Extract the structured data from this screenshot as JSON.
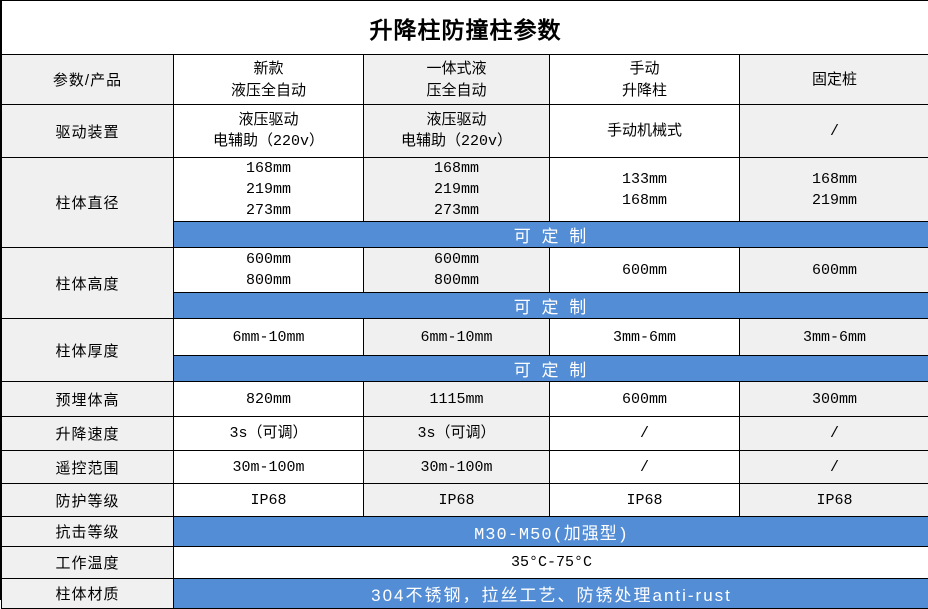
{
  "title": "升降柱防撞柱参数",
  "header": {
    "corner": "参数/产品",
    "products": [
      "新款\n液压全自动",
      "一体式液\n压全自动",
      "手动\n升降柱",
      "固定桩"
    ]
  },
  "rows": {
    "drive": {
      "label": "驱动装置",
      "values": [
        "液压驱动\n电辅助（220v）",
        "液压驱动\n电辅助（220v）",
        "手动机械式",
        "/"
      ]
    },
    "diameter": {
      "label": "柱体直径",
      "values": [
        "168mm\n219mm\n273mm",
        "168mm\n219mm\n273mm",
        "133mm\n168mm",
        "168mm\n219mm"
      ],
      "custom": "可 定 制"
    },
    "height": {
      "label": "柱体高度",
      "values": [
        "600mm\n800mm",
        "600mm\n800mm",
        "600mm",
        "600mm"
      ],
      "custom": "可 定 制"
    },
    "thickness": {
      "label": "柱体厚度",
      "values": [
        "6mm-10mm",
        "6mm-10mm",
        "3mm-6mm",
        "3mm-6mm"
      ],
      "custom": "可 定 制"
    },
    "buried": {
      "label": "预埋体高",
      "values": [
        "820mm",
        "1115mm",
        "600mm",
        "300mm"
      ]
    },
    "speed": {
      "label": "升降速度",
      "values": [
        "3s（可调）",
        "3s（可调）",
        "/",
        "/"
      ]
    },
    "remote": {
      "label": "遥控范围",
      "values": [
        "30m-100m",
        "30m-100m",
        "/",
        "/"
      ]
    },
    "protection": {
      "label": "防护等级",
      "values": [
        "IP68",
        "IP68",
        "IP68",
        "IP68"
      ]
    },
    "impact": {
      "label": "抗击等级",
      "span_value": "M30-M50(加强型)"
    },
    "temperature": {
      "label": "工作温度",
      "span_value": "35°C-75°C"
    },
    "material": {
      "label": "柱体材质",
      "span_value": "304不锈钢，拉丝工艺、防锈处理anti-rust"
    }
  },
  "colors": {
    "accent_blue": "#538dd5",
    "cell_gray": "#f0f0f0",
    "border": "#000000"
  }
}
